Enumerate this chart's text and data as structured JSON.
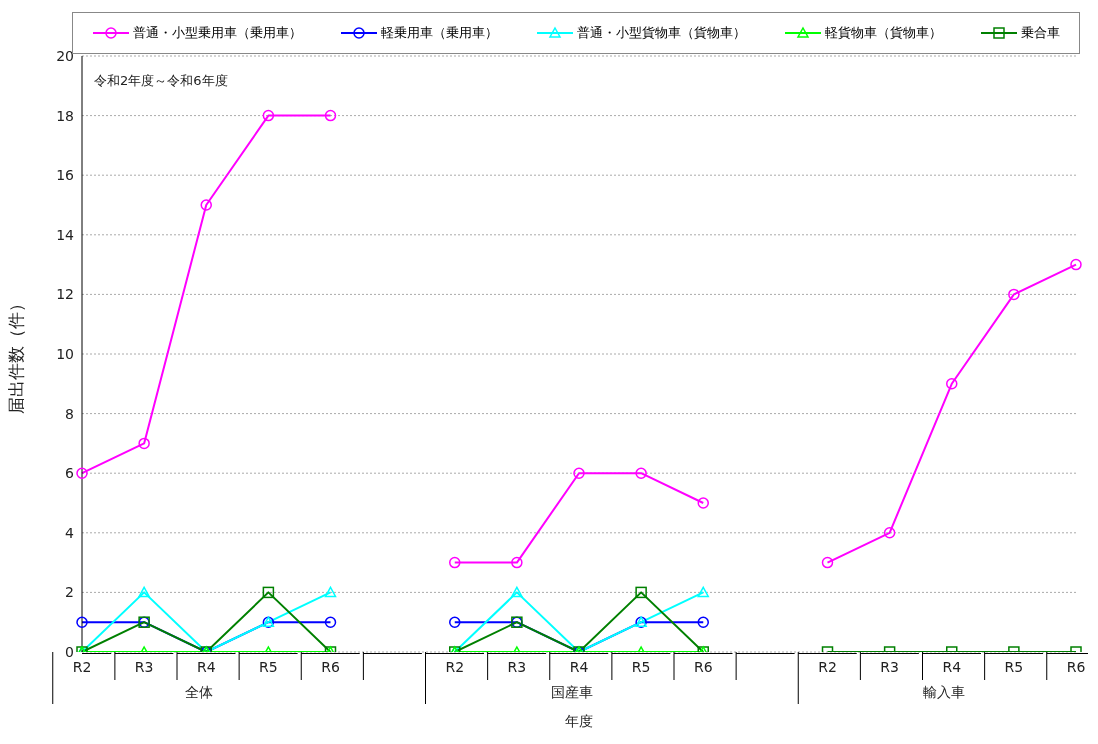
{
  "chart_data": {
    "type": "line",
    "xlabel": "年度",
    "ylabel": "届出件数（件）",
    "categories": [
      "R2",
      "R3",
      "R4",
      "R5",
      "R6",
      null,
      "R2",
      "R3",
      "R4",
      "R5",
      "R6",
      null,
      "R2",
      "R3",
      "R4",
      "R5",
      "R6"
    ],
    "annotations": [
      "令和2年度～令和6年度",
      "全体",
      "国産車",
      "輸入車"
    ],
    "series": [
      {
        "name": "普通・小型乗用車（乗用車）",
        "color": "#ff00ff",
        "marker": "circle",
        "values": [
          6,
          7,
          15,
          18,
          18,
          null,
          3,
          3,
          6,
          6,
          5,
          null,
          3,
          4,
          9,
          12,
          13
        ]
      },
      {
        "name": "軽乗用車（乗用車）",
        "color": "#0000ff",
        "marker": "circle",
        "values": [
          1,
          1,
          0,
          1,
          1,
          null,
          1,
          1,
          0,
          1,
          1,
          null,
          null,
          null,
          null,
          null,
          null
        ]
      },
      {
        "name": "普通・小型貨物車（貨物車）",
        "color": "#00ffff",
        "marker": "triangle",
        "values": [
          0,
          2,
          0,
          1,
          2,
          null,
          0,
          2,
          0,
          1,
          2,
          null,
          null,
          null,
          null,
          null,
          null
        ]
      },
      {
        "name": "軽貨物車（貨物車）",
        "color": "#00ff00",
        "marker": "triangle",
        "values": [
          0,
          0,
          0,
          0,
          0,
          null,
          0,
          0,
          0,
          0,
          0,
          null,
          null,
          null,
          null,
          null,
          null
        ]
      },
      {
        "name": "乗合車",
        "color": "#008000",
        "marker": "square",
        "values": [
          0,
          1,
          0,
          2,
          0,
          null,
          0,
          1,
          0,
          2,
          0,
          null,
          0,
          0,
          0,
          0,
          0
        ]
      }
    ],
    "ylim": [
      0,
      20
    ],
    "yticks": [
      0,
      2,
      4,
      6,
      8,
      10,
      12,
      14,
      16,
      18,
      20
    ],
    "grid": "y",
    "legend": "top"
  }
}
